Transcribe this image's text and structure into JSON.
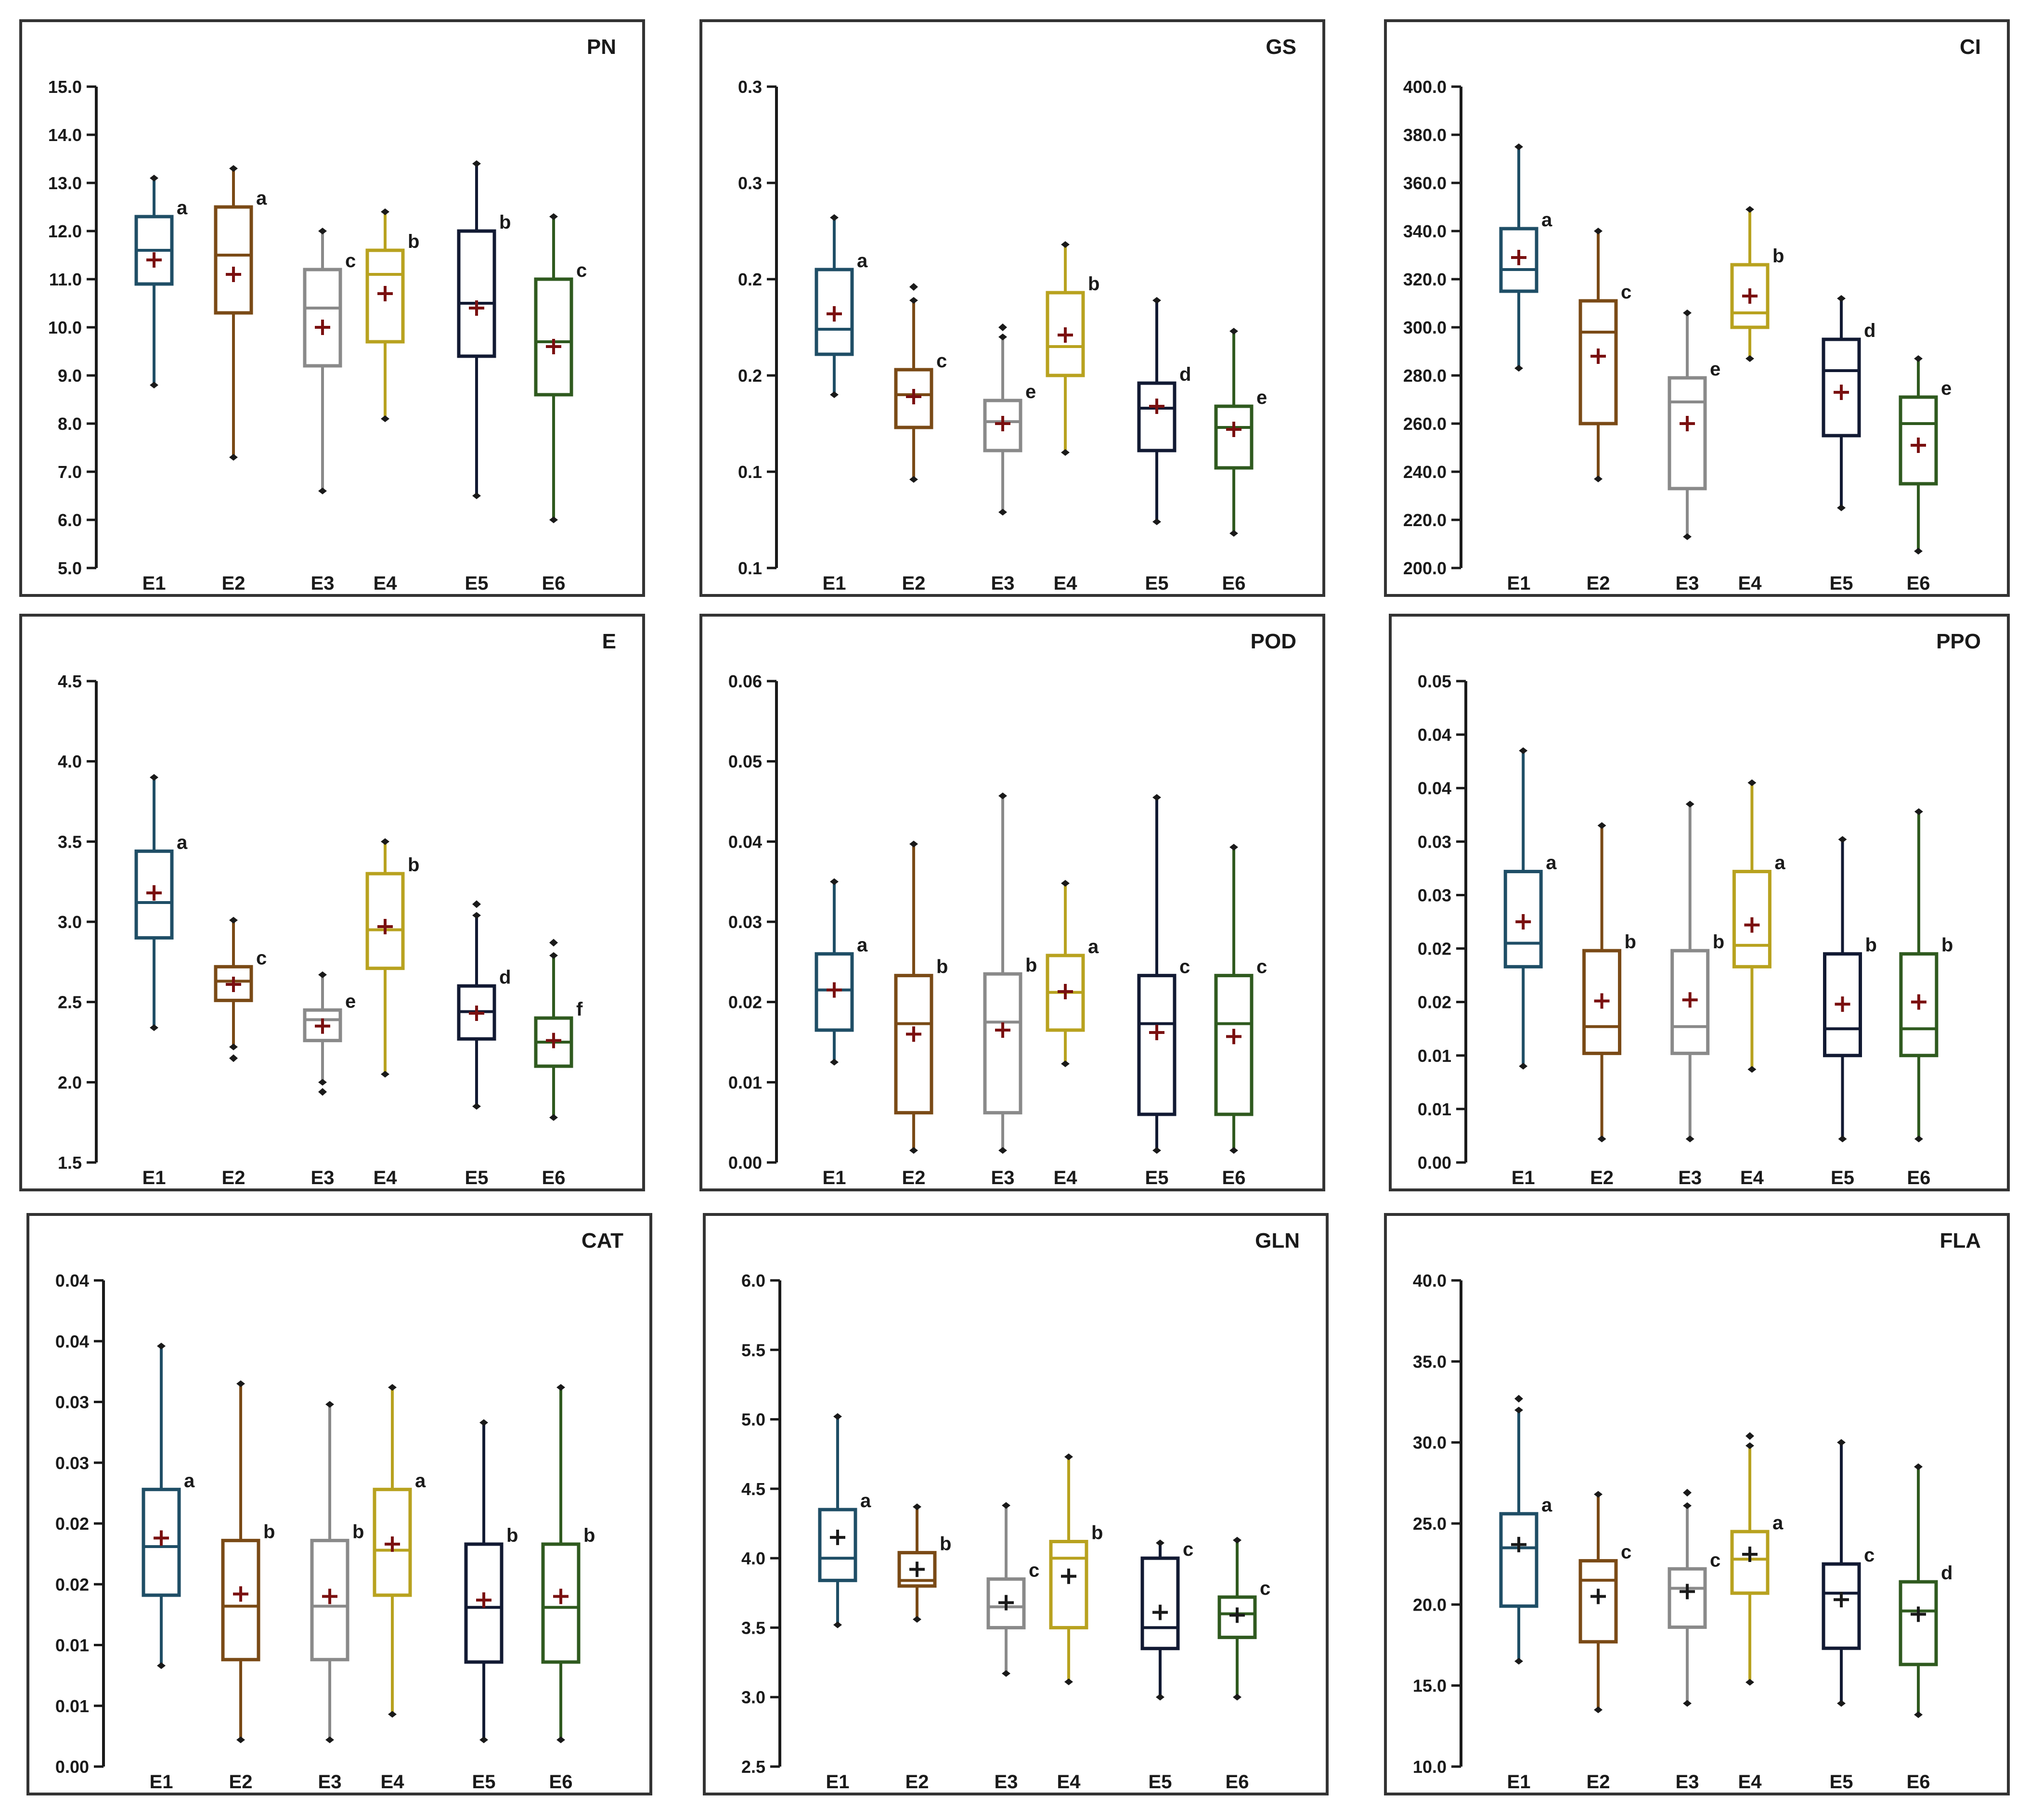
{
  "colors": {
    "E1": "#1f4e66",
    "E2": "#7a4a16",
    "E3": "#8a8a8a",
    "E4": "#b8a21f",
    "E5": "#121a33",
    "E6": "#2f5a1f",
    "mean_marker": "#7a1010"
  },
  "chart_data": [
    {
      "type": "box",
      "title": "PN",
      "categories": [
        "E1",
        "E2",
        "E3",
        "E4",
        "E5",
        "E6"
      ],
      "y_ticks": [
        "5.0",
        "6.0",
        "7.0",
        "8.0",
        "9.0",
        "10.0",
        "11.0",
        "12.0",
        "13.0",
        "14.0",
        "15.0"
      ],
      "ylim": [
        5,
        15
      ],
      "mean_marker_style": "dark-red-cross",
      "boxes": [
        {
          "name": "E1",
          "min": 8.8,
          "q1": 10.9,
          "median": 11.6,
          "q3": 12.3,
          "max": 13.1,
          "mean": 11.4,
          "sig": "a"
        },
        {
          "name": "E2",
          "min": 7.3,
          "q1": 10.3,
          "median": 11.5,
          "q3": 12.5,
          "max": 13.3,
          "mean": 11.1,
          "sig": "a"
        },
        {
          "name": "E3",
          "min": 6.6,
          "q1": 9.2,
          "median": 10.4,
          "q3": 11.2,
          "max": 12.0,
          "mean": 10.0,
          "sig": "c"
        },
        {
          "name": "E4",
          "min": 8.1,
          "q1": 9.7,
          "median": 11.1,
          "q3": 11.6,
          "max": 12.4,
          "mean": 10.7,
          "sig": "b"
        },
        {
          "name": "E5",
          "min": 6.5,
          "q1": 9.4,
          "median": 10.5,
          "q3": 12.0,
          "max": 13.4,
          "mean": 10.4,
          "sig": "b"
        },
        {
          "name": "E6",
          "min": 6.0,
          "q1": 8.6,
          "median": 9.7,
          "q3": 11.0,
          "max": 12.3,
          "mean": 9.6,
          "sig": "c"
        }
      ]
    },
    {
      "type": "box",
      "title": "GS",
      "categories": [
        "E1",
        "E2",
        "E3",
        "E4",
        "E5",
        "E6"
      ],
      "y_ticks": [
        "0.1",
        "0.1",
        "0.2",
        "0.2",
        "0.3",
        "0.3"
      ],
      "ylim": [
        0.05,
        0.3
      ],
      "mean_marker_style": "dark-red-cross",
      "boxes": [
        {
          "name": "E1",
          "min": 0.14,
          "q1": 0.161,
          "median": 0.174,
          "q3": 0.205,
          "max": 0.232,
          "mean": 0.182,
          "sig": "a"
        },
        {
          "name": "E2",
          "min": 0.096,
          "q1": 0.123,
          "median": 0.14,
          "q3": 0.153,
          "max": 0.189,
          "mean": 0.139,
          "sig": "c",
          "outliers": [
            0.196
          ]
        },
        {
          "name": "E3",
          "min": 0.079,
          "q1": 0.111,
          "median": 0.126,
          "q3": 0.137,
          "max": 0.17,
          "mean": 0.125,
          "sig": "e",
          "outliers": [
            0.175
          ]
        },
        {
          "name": "E4",
          "min": 0.11,
          "q1": 0.15,
          "median": 0.165,
          "q3": 0.193,
          "max": 0.218,
          "mean": 0.171,
          "sig": "b"
        },
        {
          "name": "E5",
          "min": 0.074,
          "q1": 0.111,
          "median": 0.133,
          "q3": 0.146,
          "max": 0.189,
          "mean": 0.134,
          "sig": "d"
        },
        {
          "name": "E6",
          "min": 0.068,
          "q1": 0.102,
          "median": 0.123,
          "q3": 0.134,
          "max": 0.173,
          "mean": 0.122,
          "sig": "e"
        }
      ]
    },
    {
      "type": "box",
      "title": "CI",
      "categories": [
        "E1",
        "E2",
        "E3",
        "E4",
        "E5",
        "E6"
      ],
      "y_ticks": [
        "200.0",
        "220.0",
        "240.0",
        "260.0",
        "280.0",
        "300.0",
        "320.0",
        "340.0",
        "360.0",
        "380.0",
        "400.0"
      ],
      "ylim": [
        200,
        400
      ],
      "mean_marker_style": "dark-red-cross",
      "boxes": [
        {
          "name": "E1",
          "min": 283,
          "q1": 315,
          "median": 324,
          "q3": 341,
          "max": 375,
          "mean": 329,
          "sig": "a"
        },
        {
          "name": "E2",
          "min": 237,
          "q1": 260,
          "median": 298,
          "q3": 311,
          "max": 340,
          "mean": 288,
          "sig": "c"
        },
        {
          "name": "E3",
          "min": 213,
          "q1": 233,
          "median": 269,
          "q3": 279,
          "max": 306,
          "mean": 260,
          "sig": "e"
        },
        {
          "name": "E4",
          "min": 287,
          "q1": 300,
          "median": 306,
          "q3": 326,
          "max": 349,
          "mean": 313,
          "sig": "b"
        },
        {
          "name": "E5",
          "min": 225,
          "q1": 255,
          "median": 282,
          "q3": 295,
          "max": 312,
          "mean": 273,
          "sig": "d"
        },
        {
          "name": "E6",
          "min": 207,
          "q1": 235,
          "median": 260,
          "q3": 271,
          "max": 287,
          "mean": 251,
          "sig": "e"
        }
      ]
    },
    {
      "type": "box",
      "title": "E",
      "categories": [
        "E1",
        "E2",
        "E3",
        "E4",
        "E5",
        "E6"
      ],
      "y_ticks": [
        "1.5",
        "2.0",
        "2.5",
        "3.0",
        "3.5",
        "4.0",
        "4.5"
      ],
      "ylim": [
        1.5,
        4.5
      ],
      "mean_marker_style": "dark-red-cross",
      "boxes": [
        {
          "name": "E1",
          "min": 2.34,
          "q1": 2.9,
          "median": 3.12,
          "q3": 3.44,
          "max": 3.9,
          "mean": 3.18,
          "sig": "a"
        },
        {
          "name": "E2",
          "min": 2.22,
          "q1": 2.51,
          "median": 2.63,
          "q3": 2.72,
          "max": 3.01,
          "mean": 2.61,
          "sig": "c",
          "outliers": [
            2.15
          ]
        },
        {
          "name": "E3",
          "min": 2.0,
          "q1": 2.26,
          "median": 2.39,
          "q3": 2.45,
          "max": 2.67,
          "mean": 2.35,
          "sig": "e",
          "outliers": [
            1.94
          ]
        },
        {
          "name": "E4",
          "min": 2.05,
          "q1": 2.71,
          "median": 2.95,
          "q3": 3.3,
          "max": 3.5,
          "mean": 2.97,
          "sig": "b"
        },
        {
          "name": "E5",
          "min": 1.85,
          "q1": 2.27,
          "median": 2.44,
          "q3": 2.6,
          "max": 3.04,
          "mean": 2.43,
          "sig": "d",
          "outliers": [
            3.11
          ]
        },
        {
          "name": "E6",
          "min": 1.78,
          "q1": 2.1,
          "median": 2.25,
          "q3": 2.4,
          "max": 2.79,
          "mean": 2.26,
          "sig": "f",
          "outliers": [
            2.87
          ]
        }
      ]
    },
    {
      "type": "box",
      "title": "POD",
      "categories": [
        "E1",
        "E2",
        "E3",
        "E4",
        "E5",
        "E6"
      ],
      "y_ticks": [
        "0.00",
        "0.01",
        "0.02",
        "0.03",
        "0.04",
        "0.05",
        "0.06"
      ],
      "ylim": [
        0,
        0.06
      ],
      "mean_marker_style": "dark-red-cross",
      "boxes": [
        {
          "name": "E1",
          "min": 0.0125,
          "q1": 0.0165,
          "median": 0.0215,
          "q3": 0.026,
          "max": 0.035,
          "mean": 0.0215,
          "sig": "a"
        },
        {
          "name": "E2",
          "min": 0.0015,
          "q1": 0.0062,
          "median": 0.0173,
          "q3": 0.0233,
          "max": 0.0397,
          "mean": 0.016,
          "sig": "b"
        },
        {
          "name": "E3",
          "min": 0.0015,
          "q1": 0.0062,
          "median": 0.0175,
          "q3": 0.0235,
          "max": 0.0457,
          "mean": 0.0165,
          "sig": "b"
        },
        {
          "name": "E4",
          "min": 0.0123,
          "q1": 0.0165,
          "median": 0.0212,
          "q3": 0.0258,
          "max": 0.0348,
          "mean": 0.0213,
          "sig": "a"
        },
        {
          "name": "E5",
          "min": 0.0015,
          "q1": 0.006,
          "median": 0.0173,
          "q3": 0.0233,
          "max": 0.0455,
          "mean": 0.0162,
          "sig": "c"
        },
        {
          "name": "E6",
          "min": 0.0015,
          "q1": 0.006,
          "median": 0.0173,
          "q3": 0.0233,
          "max": 0.0393,
          "mean": 0.0157,
          "sig": "c"
        }
      ]
    },
    {
      "type": "box",
      "title": "PPO",
      "categories": [
        "E1",
        "E2",
        "E3",
        "E4",
        "E5",
        "E6"
      ],
      "y_ticks": [
        "0.00",
        "0.01",
        "0.01",
        "0.02",
        "0.02",
        "0.03",
        "0.03",
        "0.04",
        "0.04",
        "0.05"
      ],
      "ylim": [
        0,
        0.045
      ],
      "mean_marker_style": "dark-red-cross",
      "boxes": [
        {
          "name": "E1",
          "min": 0.009,
          "q1": 0.0183,
          "median": 0.0205,
          "q3": 0.0272,
          "max": 0.0385,
          "mean": 0.0225,
          "sig": "a"
        },
        {
          "name": "E2",
          "min": 0.0022,
          "q1": 0.0102,
          "median": 0.0127,
          "q3": 0.0198,
          "max": 0.0315,
          "mean": 0.0151,
          "sig": "b"
        },
        {
          "name": "E3",
          "min": 0.0022,
          "q1": 0.0102,
          "median": 0.0127,
          "q3": 0.0198,
          "max": 0.0335,
          "mean": 0.0152,
          "sig": "b"
        },
        {
          "name": "E4",
          "min": 0.0087,
          "q1": 0.0183,
          "median": 0.0203,
          "q3": 0.0272,
          "max": 0.0355,
          "mean": 0.0222,
          "sig": "a"
        },
        {
          "name": "E5",
          "min": 0.0022,
          "q1": 0.01,
          "median": 0.0125,
          "q3": 0.0195,
          "max": 0.0302,
          "mean": 0.0148,
          "sig": "b"
        },
        {
          "name": "E6",
          "min": 0.0022,
          "q1": 0.01,
          "median": 0.0125,
          "q3": 0.0195,
          "max": 0.0328,
          "mean": 0.015,
          "sig": "b"
        }
      ]
    },
    {
      "type": "box",
      "title": "CAT",
      "categories": [
        "E1",
        "E2",
        "E3",
        "E4",
        "E5",
        "E6"
      ],
      "y_ticks": [
        "0.00",
        "0.01",
        "0.01",
        "0.02",
        "0.02",
        "0.03",
        "0.03",
        "0.04",
        "0.04"
      ],
      "ylim": [
        0,
        0.04
      ],
      "mean_marker_style": "dark-red-cross",
      "boxes": [
        {
          "name": "E1",
          "min": 0.0083,
          "q1": 0.0141,
          "median": 0.0181,
          "q3": 0.0228,
          "max": 0.0346,
          "mean": 0.0188,
          "sig": "a"
        },
        {
          "name": "E2",
          "min": 0.0022,
          "q1": 0.0088,
          "median": 0.0132,
          "q3": 0.0186,
          "max": 0.0315,
          "mean": 0.0142,
          "sig": "b"
        },
        {
          "name": "E3",
          "min": 0.0022,
          "q1": 0.0088,
          "median": 0.0132,
          "q3": 0.0186,
          "max": 0.0298,
          "mean": 0.014,
          "sig": "b"
        },
        {
          "name": "E4",
          "min": 0.0043,
          "q1": 0.0141,
          "median": 0.0178,
          "q3": 0.0228,
          "max": 0.0312,
          "mean": 0.0183,
          "sig": "a"
        },
        {
          "name": "E5",
          "min": 0.0022,
          "q1": 0.0086,
          "median": 0.0131,
          "q3": 0.0183,
          "max": 0.0283,
          "mean": 0.0137,
          "sig": "b"
        },
        {
          "name": "E6",
          "min": 0.0022,
          "q1": 0.0086,
          "median": 0.0131,
          "q3": 0.0183,
          "max": 0.0312,
          "mean": 0.014,
          "sig": "b"
        }
      ]
    },
    {
      "type": "box",
      "title": "GLN",
      "categories": [
        "E1",
        "E2",
        "E3",
        "E4",
        "E5",
        "E6"
      ],
      "y_ticks": [
        "2.5",
        "3.0",
        "3.5",
        "4.0",
        "4.5",
        "5.0",
        "5.5",
        "6.0"
      ],
      "ylim": [
        2.5,
        6.0
      ],
      "mean_marker_style": "black-cross",
      "boxes": [
        {
          "name": "E1",
          "min": 3.52,
          "q1": 3.84,
          "median": 4.0,
          "q3": 4.35,
          "max": 5.02,
          "mean": 4.15,
          "sig": "a"
        },
        {
          "name": "E2",
          "min": 3.56,
          "q1": 3.8,
          "median": 3.84,
          "q3": 4.04,
          "max": 4.37,
          "mean": 3.92,
          "sig": "b"
        },
        {
          "name": "E3",
          "min": 3.17,
          "q1": 3.5,
          "median": 3.65,
          "q3": 3.85,
          "max": 4.38,
          "mean": 3.68,
          "sig": "c"
        },
        {
          "name": "E4",
          "min": 3.11,
          "q1": 3.5,
          "median": 4.0,
          "q3": 4.12,
          "max": 4.73,
          "mean": 3.87,
          "sig": "b"
        },
        {
          "name": "E5",
          "min": 3.0,
          "q1": 3.35,
          "median": 3.5,
          "q3": 4.0,
          "max": 4.11,
          "mean": 3.61,
          "sig": "c"
        },
        {
          "name": "E6",
          "min": 3.0,
          "q1": 3.43,
          "median": 3.6,
          "q3": 3.72,
          "max": 4.13,
          "mean": 3.59,
          "sig": "c"
        }
      ]
    },
    {
      "type": "box",
      "title": "FLA",
      "categories": [
        "E1",
        "E2",
        "E3",
        "E4",
        "E5",
        "E6"
      ],
      "y_ticks": [
        "10.0",
        "15.0",
        "20.0",
        "25.0",
        "30.0",
        "35.0",
        "40.0"
      ],
      "ylim": [
        10,
        40
      ],
      "mean_marker_style": "black-cross",
      "boxes": [
        {
          "name": "E1",
          "min": 16.5,
          "q1": 19.9,
          "median": 23.5,
          "q3": 25.6,
          "max": 32.0,
          "mean": 23.7,
          "sig": "a",
          "outliers": [
            32.7
          ]
        },
        {
          "name": "E2",
          "min": 13.5,
          "q1": 17.7,
          "median": 21.5,
          "q3": 22.7,
          "max": 26.8,
          "mean": 20.5,
          "sig": "c"
        },
        {
          "name": "E3",
          "min": 13.9,
          "q1": 18.6,
          "median": 21.0,
          "q3": 22.2,
          "max": 26.1,
          "mean": 20.8,
          "sig": "c",
          "outliers": [
            26.9
          ]
        },
        {
          "name": "E4",
          "min": 15.2,
          "q1": 20.7,
          "median": 22.8,
          "q3": 24.5,
          "max": 29.8,
          "mean": 23.1,
          "sig": "a",
          "outliers": [
            30.4
          ]
        },
        {
          "name": "E5",
          "min": 13.9,
          "q1": 17.3,
          "median": 20.7,
          "q3": 22.5,
          "max": 30.0,
          "mean": 20.3,
          "sig": "c"
        },
        {
          "name": "E6",
          "min": 13.2,
          "q1": 16.3,
          "median": 19.6,
          "q3": 21.4,
          "max": 28.5,
          "mean": 19.4,
          "sig": "d"
        }
      ]
    }
  ]
}
